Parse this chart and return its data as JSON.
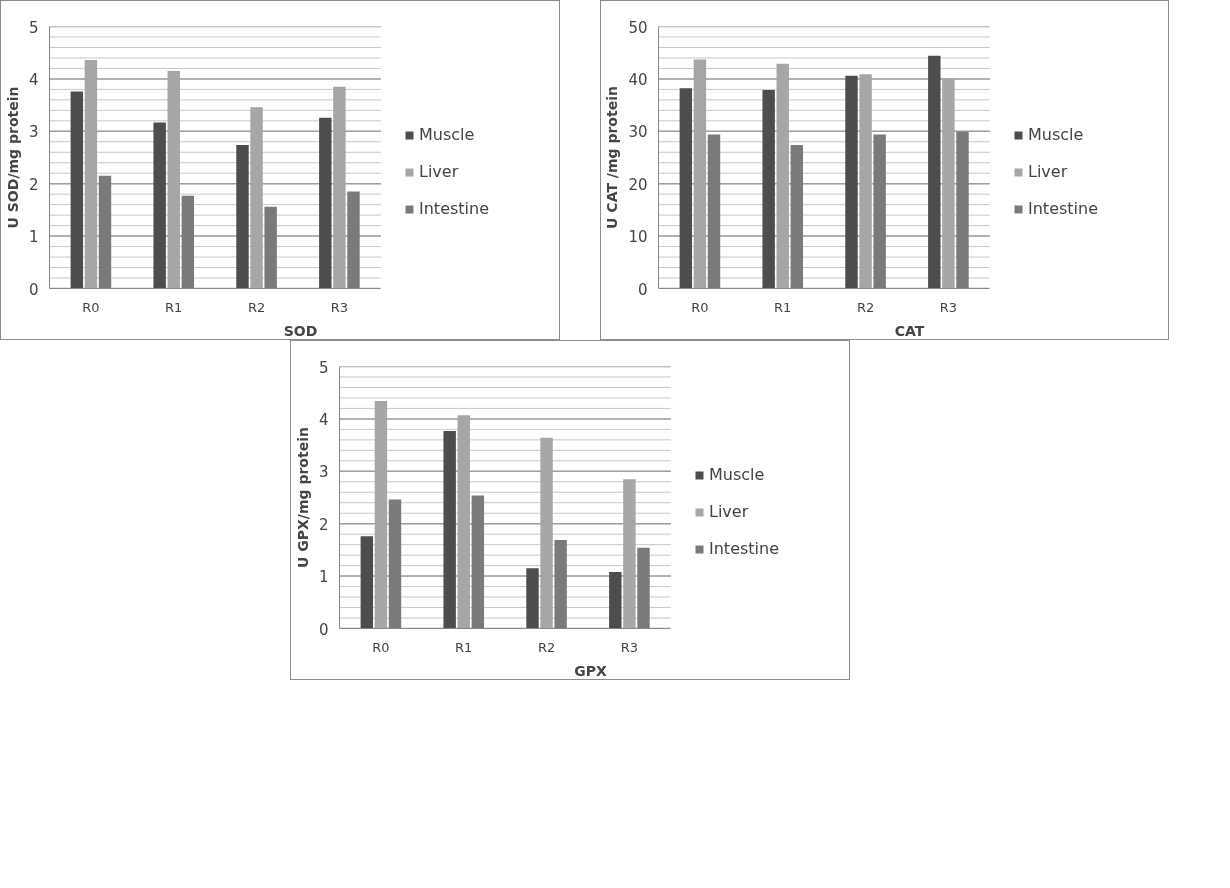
{
  "chart_data": [
    {
      "type": "bar",
      "categories": [
        "R0",
        "R1",
        "R2",
        "R3"
      ],
      "xlabel": "SOD",
      "ylabel": "U SOD/mg protein",
      "ylim": [
        0,
        5
      ],
      "yticks": [
        0,
        1,
        2,
        3,
        4,
        5
      ],
      "grid": "y",
      "legend": "right",
      "series": [
        {
          "name": "Muscle",
          "color": "#4d4d4d",
          "values": [
            3.76,
            3.17,
            2.74,
            3.26
          ]
        },
        {
          "name": "Liver",
          "color": "#a6a6a6",
          "values": [
            4.36,
            4.15,
            3.46,
            3.85
          ]
        },
        {
          "name": "Intestine",
          "color": "#7a7a7a",
          "values": [
            2.15,
            1.77,
            1.56,
            1.85
          ]
        }
      ]
    },
    {
      "type": "bar",
      "categories": [
        "R0",
        "R1",
        "R2",
        "R3"
      ],
      "xlabel": "CAT",
      "ylabel": "U CAT /mg protein",
      "ylim": [
        0,
        50
      ],
      "yticks": [
        0,
        10,
        20,
        30,
        40,
        50
      ],
      "grid": "y",
      "legend": "right",
      "series": [
        {
          "name": "Muscle",
          "color": "#4d4d4d",
          "values": [
            38.2,
            37.9,
            40.6,
            44.4
          ]
        },
        {
          "name": "Liver",
          "color": "#a6a6a6",
          "values": [
            43.7,
            42.9,
            40.9,
            40.0
          ]
        },
        {
          "name": "Intestine",
          "color": "#7a7a7a",
          "values": [
            29.4,
            27.4,
            29.4,
            29.9
          ]
        }
      ]
    },
    {
      "type": "bar",
      "categories": [
        "R0",
        "R1",
        "R2",
        "R3"
      ],
      "xlabel": "GPX",
      "ylabel": "U GPX/mg protein",
      "ylim": [
        0,
        5
      ],
      "yticks": [
        0,
        1,
        2,
        3,
        4,
        5
      ],
      "grid": "y",
      "legend": "right",
      "series": [
        {
          "name": "Muscle",
          "color": "#4d4d4d",
          "values": [
            1.76,
            3.77,
            1.15,
            1.08
          ]
        },
        {
          "name": "Liver",
          "color": "#a6a6a6",
          "values": [
            4.34,
            4.07,
            3.64,
            2.85
          ]
        },
        {
          "name": "Intestine",
          "color": "#7a7a7a",
          "values": [
            2.46,
            2.54,
            1.69,
            1.54
          ]
        }
      ]
    }
  ]
}
